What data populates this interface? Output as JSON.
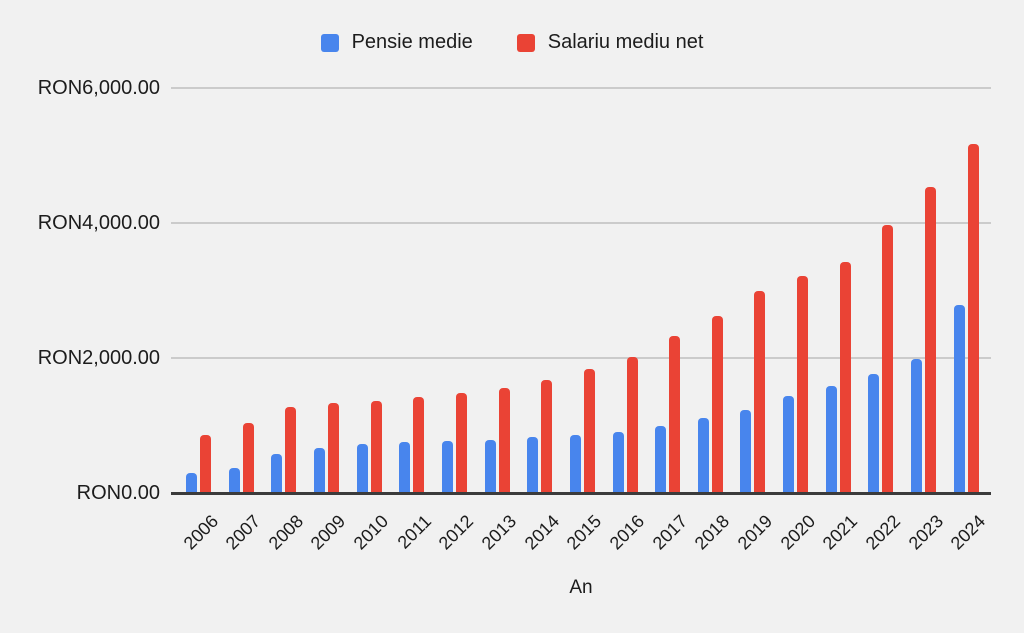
{
  "chart_data": {
    "type": "bar",
    "title": "",
    "xlabel": "An",
    "ylabel": "",
    "categories": [
      "2006",
      "2007",
      "2008",
      "2009",
      "2010",
      "2011",
      "2012",
      "2013",
      "2014",
      "2015",
      "2016",
      "2017",
      "2018",
      "2019",
      "2020",
      "2021",
      "2022",
      "2023",
      "2024"
    ],
    "series": [
      {
        "name": "Pensie medie",
        "color": "#4885ED",
        "values": [
          300,
          375,
          580,
          670,
          730,
          750,
          765,
          790,
          830,
          860,
          900,
          1000,
          1105,
          1230,
          1430,
          1585,
          1770,
          1985,
          2780
        ]
      },
      {
        "name": "Salariu mediu net",
        "color": "#EA4335",
        "values": [
          860,
          1040,
          1270,
          1330,
          1360,
          1425,
          1480,
          1550,
          1670,
          1830,
          2020,
          2330,
          2620,
          2990,
          3220,
          3415,
          3970,
          4540,
          5170
        ]
      }
    ],
    "ylim": [
      0,
      6000
    ],
    "y_ticks": [
      {
        "value": 0,
        "label": "RON0.00"
      },
      {
        "value": 2000,
        "label": "RON2,000.00"
      },
      {
        "value": 4000,
        "label": "RON4,000.00"
      },
      {
        "value": 6000,
        "label": "RON6,000.00"
      }
    ],
    "legend_position": "top",
    "grid": true
  },
  "colors": {
    "background": "#f1f1f1",
    "gridline": "#cbcbcb",
    "axis_line": "#3b3b3b",
    "text": "#1c1c1c"
  }
}
